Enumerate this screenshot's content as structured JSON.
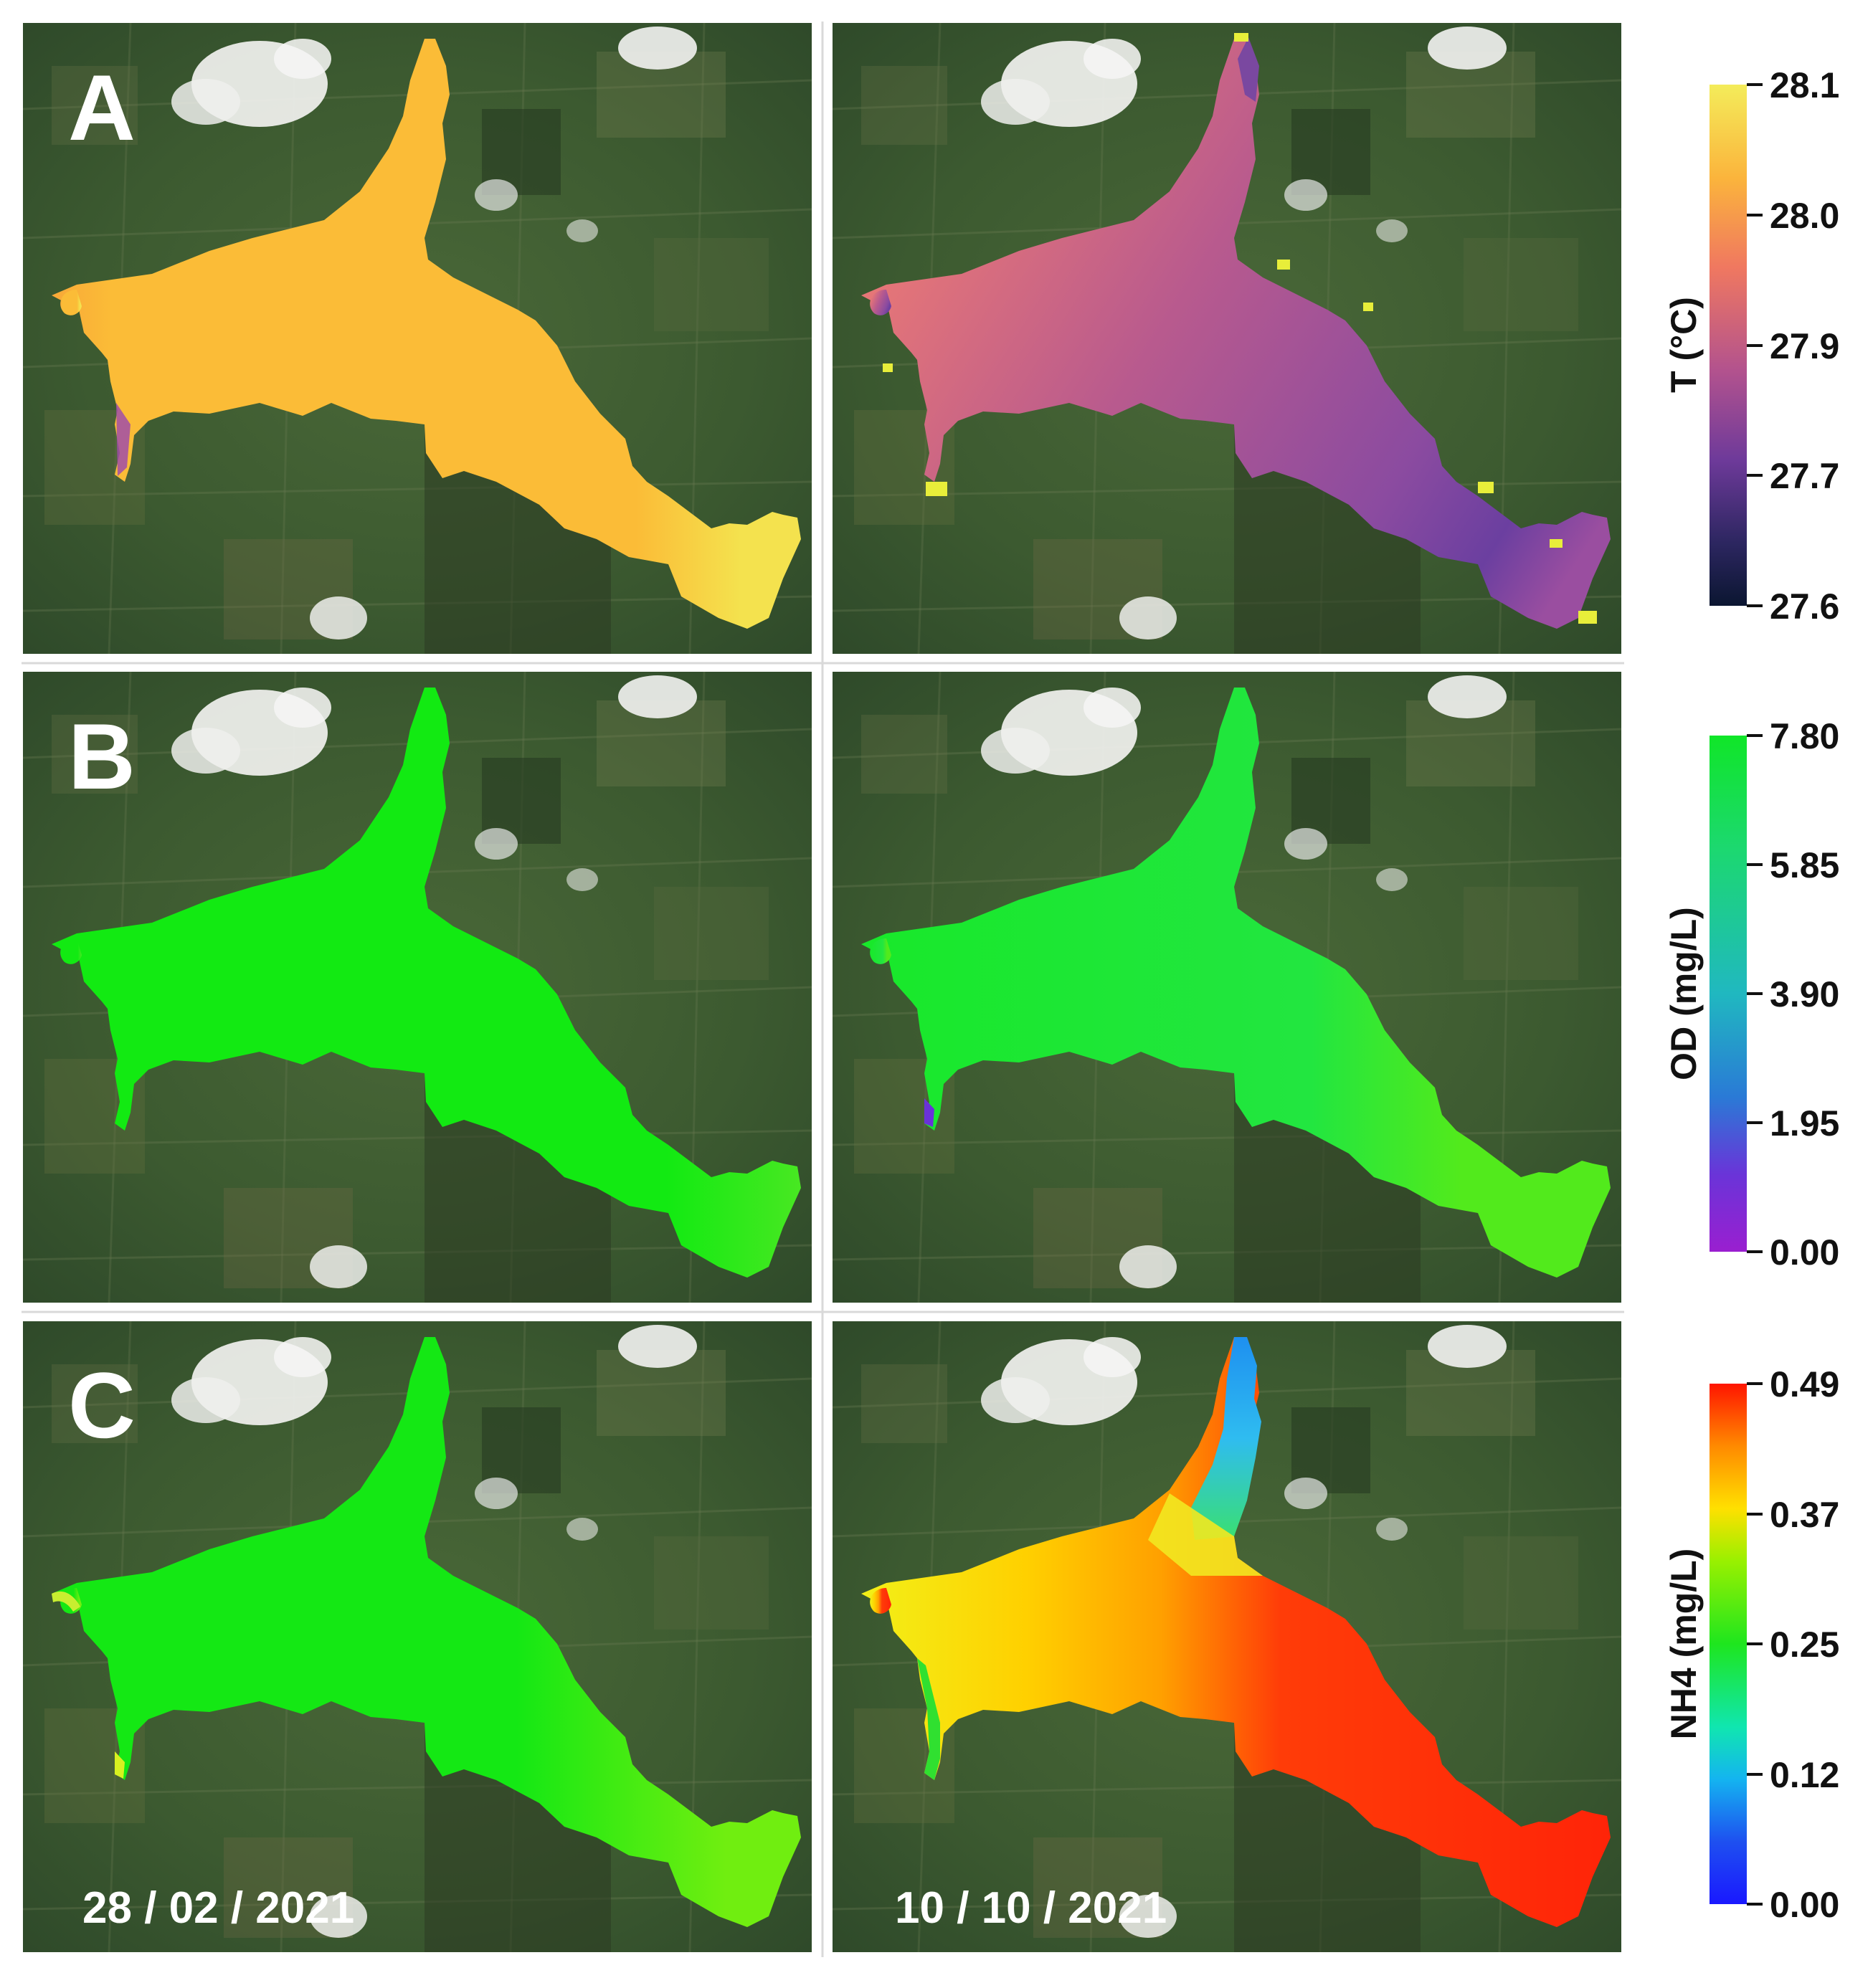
{
  "panels": {
    "row_labels": [
      "A",
      "B",
      "C"
    ],
    "dates": [
      "28 / 02 / 2021",
      "10 / 10 / 2021"
    ]
  },
  "colorbars": [
    {
      "label": "T (°C)",
      "ticks": [
        "28.1",
        "28.0",
        "27.9",
        "27.7",
        "27.6"
      ],
      "colors": [
        "#f4ec5a",
        "#fbb43c",
        "#f07860",
        "#b2528e",
        "#6e3a9a",
        "#2c2660",
        "#0b1631"
      ]
    },
    {
      "label": "OD (mg/L)",
      "ticks": [
        "7.80",
        "5.85",
        "3.90",
        "1.95",
        "0.00"
      ],
      "colors": [
        "#10e628",
        "#1cd870",
        "#20b8c0",
        "#2a7ad6",
        "#6a34d8",
        "#9a1fd0"
      ]
    },
    {
      "label": "NH4 (mg/L)",
      "ticks": [
        "0.49",
        "0.37",
        "0.25",
        "0.12",
        "0.00"
      ],
      "colors": [
        "#ff1500",
        "#ff8a00",
        "#ffe000",
        "#9af000",
        "#1ee61e",
        "#10e6b0",
        "#14b4f0",
        "#1e50f0",
        "#1a18ff"
      ]
    }
  ],
  "maps": [
    {
      "row": "A",
      "date": "28 / 02 / 2021",
      "main_color": "#fbbc37",
      "mouth_color": "#f4e24e",
      "inlet_color": "#9c4fa8"
    },
    {
      "row": "A",
      "date": "10 / 10 / 2021",
      "main_color": "#a85596",
      "west_color": "#ee7b73",
      "east_color": "#8b4ba0",
      "tip_color": "#6b3fa0",
      "edge_color": "#e8ee3a"
    },
    {
      "row": "B",
      "date": "28 / 02 / 2021",
      "main_color": "#12ea12",
      "mouth_color": "#48e822"
    },
    {
      "row": "B",
      "date": "10 / 10 / 2021",
      "main_color": "#18e82a",
      "east_color": "#52ea1c",
      "inlet_color": "#6a32d8"
    },
    {
      "row": "C",
      "date": "28 / 02 / 2021",
      "main_color": "#14e814",
      "mouth_color": "#70ee10",
      "inlet_color": "#d8f020"
    },
    {
      "row": "C",
      "date": "10 / 10 / 2021",
      "main_color": "#ff2408",
      "west_color": "#f2f018",
      "center_color": "#ffa000",
      "north_color": "#2fbcf0",
      "tip_color": "#1e90f0"
    }
  ]
}
